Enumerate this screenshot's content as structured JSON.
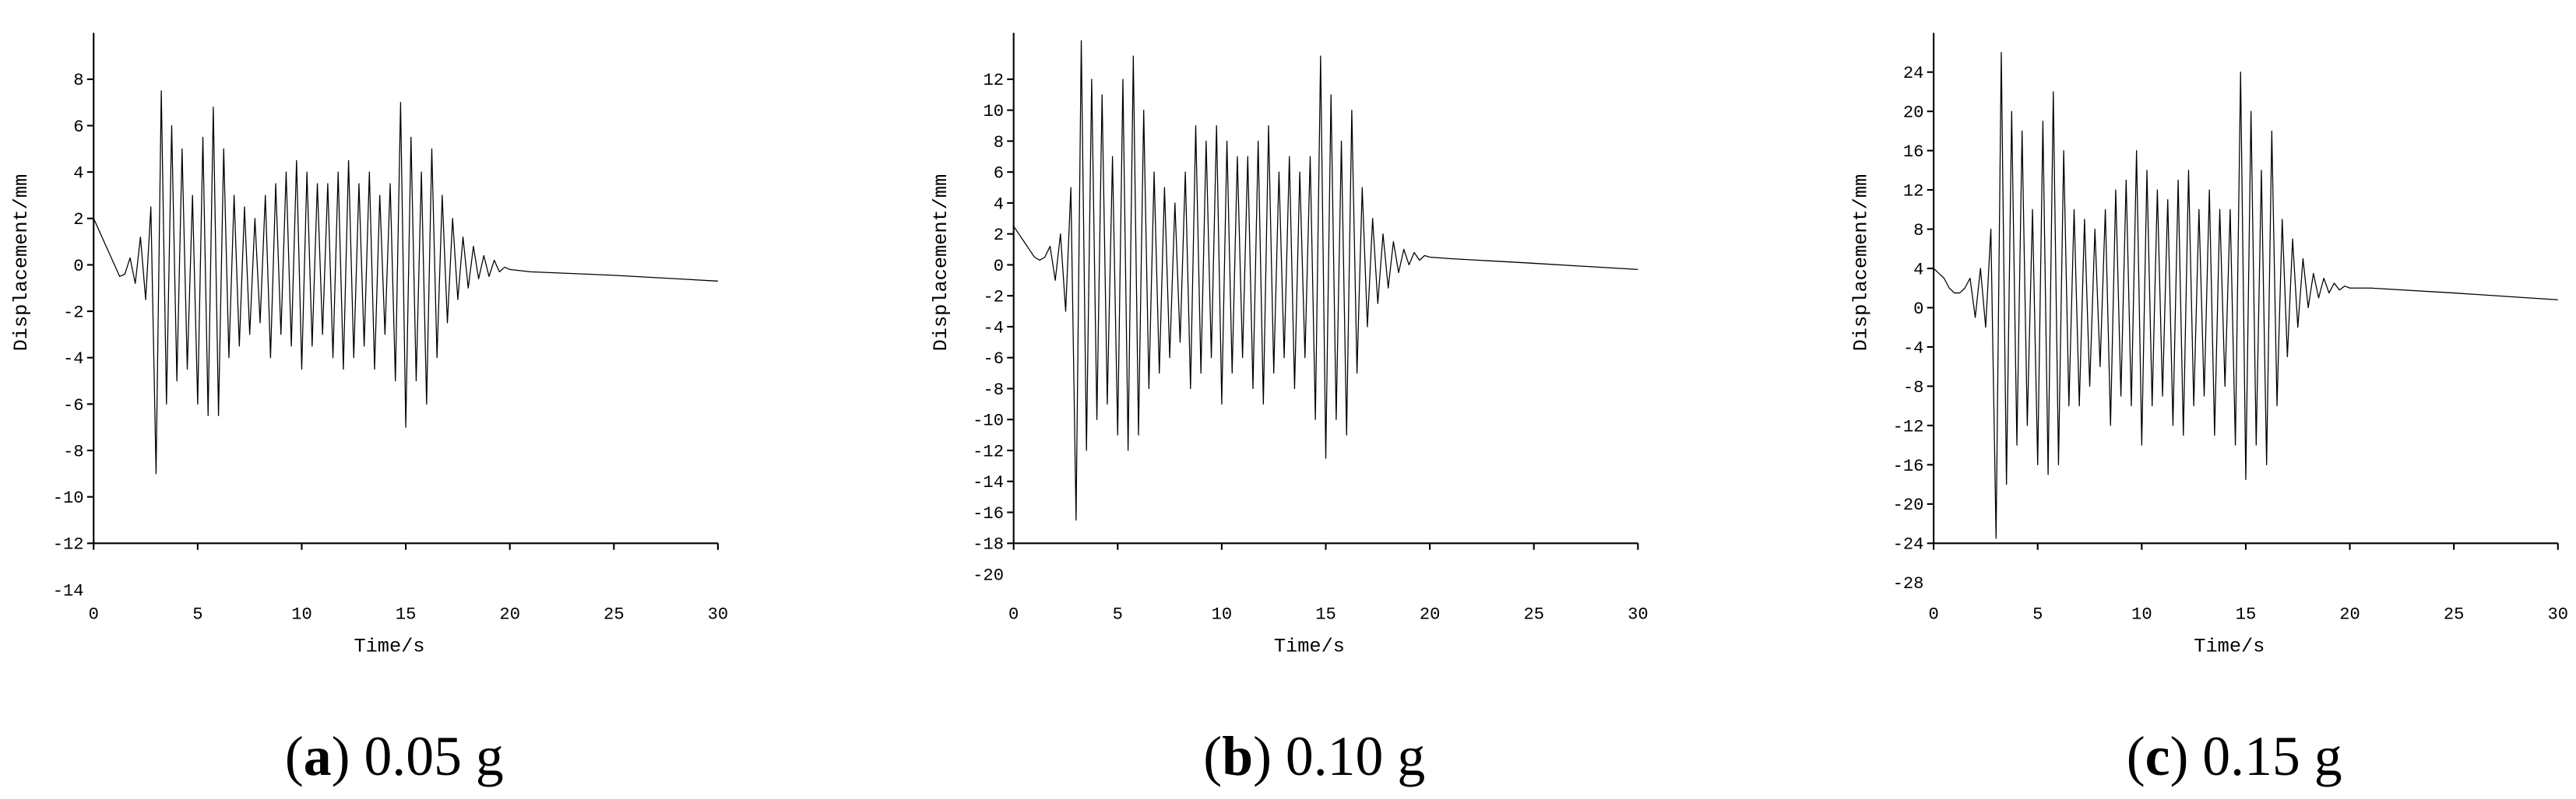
{
  "chart_data": [
    {
      "type": "line",
      "xlabel": "Time/s",
      "ylabel": "Displacement/mm",
      "caption_parts": [
        "(",
        "a",
        ") 0.05 g"
      ],
      "xlim": [
        0,
        30
      ],
      "xticks": [
        0,
        5,
        10,
        15,
        20,
        25,
        30
      ],
      "ylim": [
        -12,
        10
      ],
      "yticks": [
        -14,
        -12,
        -10,
        -8,
        -6,
        -4,
        -2,
        0,
        2,
        4,
        6,
        8
      ],
      "series": [
        {
          "color": "#000000",
          "x": [
            0,
            0.25,
            0.5,
            0.75,
            1,
            1.25,
            1.5,
            1.75,
            2,
            2.25,
            2.5,
            2.75,
            3,
            3.25,
            3.5,
            3.75,
            4,
            4.25,
            4.5,
            4.75,
            5,
            5.25,
            5.5,
            5.75,
            6,
            6.25,
            6.5,
            6.75,
            7,
            7.25,
            7.5,
            7.75,
            8,
            8.25,
            8.5,
            8.75,
            9,
            9.25,
            9.5,
            9.75,
            10,
            10.25,
            10.5,
            10.75,
            11,
            11.25,
            11.5,
            11.75,
            12,
            12.25,
            12.5,
            12.75,
            13,
            13.25,
            13.5,
            13.75,
            14,
            14.25,
            14.5,
            14.75,
            15,
            15.25,
            15.5,
            15.75,
            16,
            16.25,
            16.5,
            16.75,
            17,
            17.25,
            17.5,
            17.75,
            18,
            18.25,
            18.5,
            18.75,
            19,
            19.25,
            19.5,
            19.75,
            20,
            21,
            25,
            30
          ],
          "values": [
            2,
            1.5,
            1,
            0.5,
            0,
            -0.5,
            -0.4,
            0.3,
            -0.8,
            1.2,
            -1.5,
            2.5,
            -9,
            7.5,
            -6,
            6,
            -5,
            5,
            -4.5,
            3,
            -6,
            5.5,
            -6.5,
            6.8,
            -6.5,
            5,
            -4,
            3,
            -3.5,
            2.5,
            -3,
            2,
            -2.5,
            3,
            -4,
            3.5,
            -3,
            4,
            -3.5,
            4.5,
            -4.5,
            4,
            -3.5,
            3.5,
            -3,
            3.5,
            -4,
            4,
            -4.5,
            4.5,
            -4,
            3.5,
            -3.5,
            4,
            -4.5,
            3,
            -3,
            3.5,
            -5,
            7,
            -7,
            5.5,
            -5,
            4,
            -6,
            5,
            -4,
            3,
            -2.5,
            2,
            -1.5,
            1.2,
            -1,
            0.8,
            -0.6,
            0.4,
            -0.5,
            0.2,
            -0.3,
            -0.1,
            -0.2,
            -0.3,
            -0.45,
            -0.7
          ]
        }
      ]
    },
    {
      "type": "line",
      "xlabel": "Time/s",
      "ylabel": "Displacement/mm",
      "caption_parts": [
        "(",
        "b",
        ") 0.10 g"
      ],
      "xlim": [
        0,
        30
      ],
      "xticks": [
        0,
        5,
        10,
        15,
        20,
        25,
        30
      ],
      "ylim": [
        -18,
        15
      ],
      "yticks": [
        -20,
        -18,
        -16,
        -14,
        -12,
        -10,
        -8,
        -6,
        -4,
        -2,
        0,
        2,
        4,
        6,
        8,
        10,
        12
      ],
      "series": [
        {
          "color": "#000000",
          "x": [
            0,
            0.25,
            0.5,
            0.75,
            1,
            1.25,
            1.5,
            1.75,
            2,
            2.25,
            2.5,
            2.75,
            3,
            3.25,
            3.5,
            3.75,
            4,
            4.25,
            4.5,
            4.75,
            5,
            5.25,
            5.5,
            5.75,
            6,
            6.25,
            6.5,
            6.75,
            7,
            7.25,
            7.5,
            7.75,
            8,
            8.25,
            8.5,
            8.75,
            9,
            9.25,
            9.5,
            9.75,
            10,
            10.25,
            10.5,
            10.75,
            11,
            11.25,
            11.5,
            11.75,
            12,
            12.25,
            12.5,
            12.75,
            13,
            13.25,
            13.5,
            13.75,
            14,
            14.25,
            14.5,
            14.75,
            15,
            15.25,
            15.5,
            15.75,
            16,
            16.25,
            16.5,
            16.75,
            17,
            17.25,
            17.5,
            17.75,
            18,
            18.25,
            18.5,
            18.75,
            19,
            19.25,
            19.5,
            19.75,
            20,
            21,
            25,
            30
          ],
          "values": [
            2.5,
            2,
            1.5,
            1,
            0.5,
            0.3,
            0.5,
            1.2,
            -1,
            2,
            -3,
            5,
            -16.5,
            14.5,
            -12,
            12,
            -10,
            11,
            -9,
            7,
            -11,
            12,
            -12,
            13.5,
            -11,
            10,
            -8,
            6,
            -7,
            5,
            -6,
            4,
            -5,
            6,
            -8,
            9,
            -7,
            8,
            -6,
            9,
            -9,
            8,
            -7,
            7,
            -6,
            7,
            -8,
            8,
            -9,
            9,
            -7,
            6,
            -6,
            7,
            -8,
            6,
            -6,
            7,
            -10,
            13.5,
            -12.5,
            11,
            -10,
            8,
            -11,
            10,
            -7,
            5,
            -4,
            3,
            -2.5,
            2,
            -1.5,
            1.5,
            -0.5,
            1,
            0,
            0.8,
            0.3,
            0.6,
            0.5,
            0.4,
            0.1,
            -0.3
          ]
        }
      ]
    },
    {
      "type": "line",
      "xlabel": "Time/s",
      "ylabel": "Displacement/mm",
      "caption_parts": [
        "(",
        "c",
        ") 0.15 g"
      ],
      "xlim": [
        0,
        30
      ],
      "xticks": [
        0,
        5,
        10,
        15,
        20,
        25,
        30
      ],
      "ylim": [
        -24,
        28
      ],
      "yticks": [
        -28,
        -24,
        -20,
        -16,
        -12,
        -8,
        -4,
        0,
        4,
        8,
        12,
        16,
        20,
        24
      ],
      "series": [
        {
          "color": "#000000",
          "x": [
            0,
            0.25,
            0.5,
            0.75,
            1,
            1.25,
            1.5,
            1.75,
            2,
            2.25,
            2.5,
            2.75,
            3,
            3.25,
            3.5,
            3.75,
            4,
            4.25,
            4.5,
            4.75,
            5,
            5.25,
            5.5,
            5.75,
            6,
            6.25,
            6.5,
            6.75,
            7,
            7.25,
            7.5,
            7.75,
            8,
            8.25,
            8.5,
            8.75,
            9,
            9.25,
            9.5,
            9.75,
            10,
            10.25,
            10.5,
            10.75,
            11,
            11.25,
            11.5,
            11.75,
            12,
            12.25,
            12.5,
            12.75,
            13,
            13.25,
            13.5,
            13.75,
            14,
            14.25,
            14.5,
            14.75,
            15,
            15.25,
            15.5,
            15.75,
            16,
            16.25,
            16.5,
            16.75,
            17,
            17.25,
            17.5,
            17.75,
            18,
            18.25,
            18.5,
            18.75,
            19,
            19.25,
            19.5,
            19.75,
            20,
            21,
            25,
            30
          ],
          "values": [
            4,
            3.5,
            3,
            2,
            1.5,
            1.5,
            2,
            3,
            -1,
            4,
            -2,
            8,
            -23.5,
            26,
            -18,
            20,
            -14,
            18,
            -12,
            10,
            -16,
            19,
            -17,
            22,
            -16,
            16,
            -10,
            10,
            -10,
            9,
            -8,
            8,
            -6,
            10,
            -12,
            12,
            -9,
            13,
            -10,
            16,
            -14,
            14,
            -10,
            12,
            -9,
            11,
            -12,
            13,
            -13,
            14,
            -10,
            10,
            -9,
            12,
            -13,
            10,
            -8,
            10,
            -14,
            24,
            -17.5,
            20,
            -14,
            14,
            -16,
            18,
            -10,
            9,
            -5,
            7,
            -2,
            5,
            0,
            3.5,
            1,
            3,
            1.5,
            2.5,
            1.8,
            2.2,
            2,
            2,
            1.5,
            0.8
          ]
        }
      ]
    }
  ]
}
